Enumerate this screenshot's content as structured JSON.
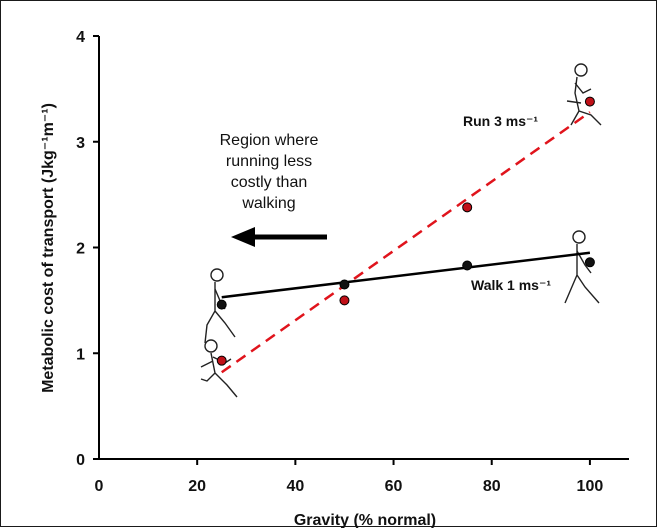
{
  "chart_data": {
    "type": "scatter",
    "title": "",
    "xlabel": "Gravity (% normal)",
    "ylabel": "Metabolic cost of transport (Jkg⁻¹m⁻¹)",
    "xlim": [
      0,
      110
    ],
    "ylim": [
      0,
      4
    ],
    "x_ticks": [
      0,
      20,
      40,
      60,
      80,
      100
    ],
    "y_ticks": [
      0,
      1,
      2,
      3,
      4
    ],
    "grid": false,
    "series": [
      {
        "name": "Walk 1 ms⁻¹",
        "color": "#000000",
        "marker": "#111111",
        "line_style": "solid",
        "points": [
          [
            25,
            1.46
          ],
          [
            50,
            1.65
          ],
          [
            75,
            1.83
          ],
          [
            100,
            1.86
          ]
        ],
        "fit": [
          [
            25,
            1.53
          ],
          [
            100,
            1.95
          ]
        ]
      },
      {
        "name": "Run 3 ms⁻¹",
        "color": "#e0141c",
        "marker": "#c01018",
        "line_style": "dashed",
        "points": [
          [
            25,
            0.93
          ],
          [
            50,
            1.5
          ],
          [
            75,
            2.38
          ],
          [
            100,
            3.38
          ]
        ],
        "fit": [
          [
            25,
            0.82
          ],
          [
            100,
            3.28
          ]
        ]
      }
    ],
    "annotation": {
      "lines": [
        "Region where",
        "running less",
        "costly than",
        "walking"
      ],
      "arrow": "left"
    }
  }
}
